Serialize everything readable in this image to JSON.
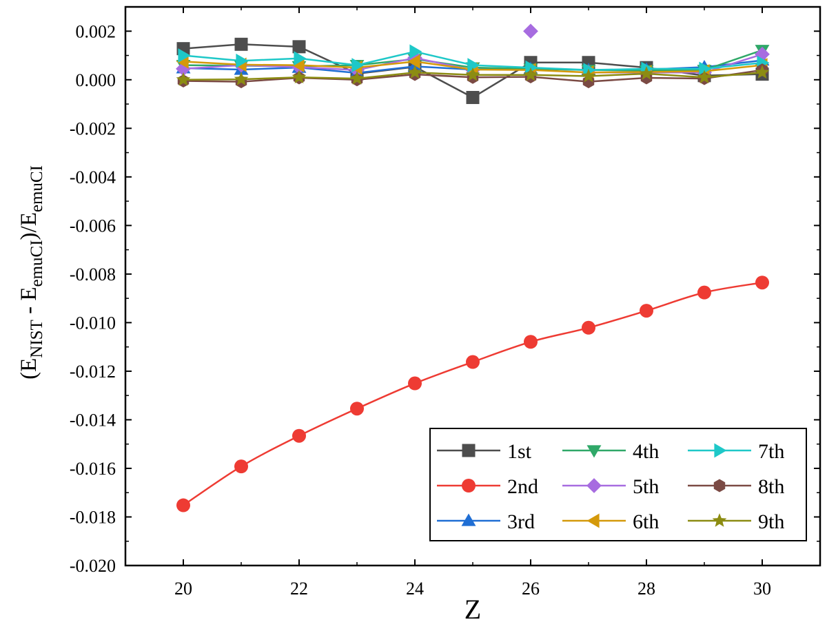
{
  "chart_data": {
    "type": "line",
    "xlabel": "Z",
    "ylabel_parts": {
      "paren_open": "(E",
      "nist": "NIST",
      "minus": " - E",
      "emu1": "emuCI",
      "slash": ")/E",
      "emu2": "emuCI"
    },
    "xlim": [
      19,
      31
    ],
    "ylim": [
      -0.02,
      0.003
    ],
    "x_ticks": [
      20,
      22,
      24,
      26,
      28,
      30
    ],
    "x_tick_labels": [
      "20",
      "22",
      "24",
      "26",
      "28",
      "30"
    ],
    "y_ticks": [
      0.002,
      0.0,
      -0.002,
      -0.004,
      -0.006,
      -0.008,
      -0.01,
      -0.012,
      -0.014,
      -0.016,
      -0.018,
      -0.02
    ],
    "y_tick_labels": [
      "0.002",
      "0.000",
      "-0.002",
      "-0.004",
      "-0.006",
      "-0.008",
      "-0.010",
      "-0.012",
      "-0.014",
      "-0.016",
      "-0.018",
      "-0.020"
    ],
    "x": [
      20,
      21,
      22,
      23,
      24,
      25,
      26,
      27,
      28,
      29,
      30
    ],
    "legend_location": "bottom-right",
    "legend_columns": 3,
    "series": [
      {
        "name": "1st",
        "marker": "square",
        "color": "#4d4d4d",
        "values": [
          0.00128,
          0.00146,
          0.00136,
          0.00025,
          0.00053,
          -0.00073,
          0.00071,
          0.00071,
          0.0005,
          0.00017,
          0.00023
        ]
      },
      {
        "name": "2nd",
        "marker": "circle",
        "color": "#ee3b33",
        "values": [
          -0.01752,
          -0.01592,
          -0.01466,
          -0.01354,
          -0.0125,
          -0.01162,
          -0.01079,
          -0.01021,
          -0.00951,
          -0.00876,
          -0.00835
        ]
      },
      {
        "name": "3rd",
        "marker": "triangle-up",
        "color": "#1f6ed4",
        "values": [
          0.00048,
          0.00042,
          0.0005,
          0.00028,
          0.00055,
          0.00042,
          0.00045,
          0.0004,
          0.00042,
          0.00052,
          0.0008
        ]
      },
      {
        "name": "4th",
        "marker": "triangle-down",
        "color": "#2fa868",
        "values": [
          0.0006,
          0.00058,
          0.00055,
          0.0006,
          0.00085,
          0.0005,
          0.00045,
          0.0004,
          0.00038,
          0.0004,
          0.00122
        ]
      },
      {
        "name": "5th",
        "marker": "diamond",
        "color": "#a76ce0",
        "values": [
          0.00045,
          0.0006,
          0.00052,
          0.0004,
          0.0009,
          0.0004,
          0.002,
          0.0003,
          0.0003,
          0.0003,
          0.00105
        ]
      },
      {
        "name": "6th",
        "marker": "triangle-left",
        "color": "#d4990a",
        "values": [
          0.00075,
          0.00062,
          0.0006,
          0.0005,
          0.00075,
          0.00042,
          0.0004,
          0.0003,
          0.00032,
          0.00035,
          0.0006
        ]
      },
      {
        "name": "7th",
        "marker": "triangle-right",
        "color": "#1ec8c8",
        "values": [
          0.001,
          0.00078,
          0.00088,
          0.0006,
          0.00116,
          0.0006,
          0.0005,
          0.0004,
          0.00045,
          0.00045,
          0.0007
        ]
      },
      {
        "name": "8th",
        "marker": "hexagon",
        "color": "#7b4a44",
        "values": [
          -5e-05,
          -8e-05,
          8e-05,
          0.0,
          0.00022,
          0.0001,
          0.00012,
          -8e-05,
          8e-05,
          5e-05,
          0.0004
        ]
      },
      {
        "name": "9th",
        "marker": "star",
        "color": "#8c8c12",
        "values": [
          0.0,
          2e-05,
          0.0001,
          5e-05,
          0.0003,
          0.0002,
          0.0002,
          0.00015,
          0.00025,
          0.0001,
          0.0003
        ]
      }
    ]
  }
}
